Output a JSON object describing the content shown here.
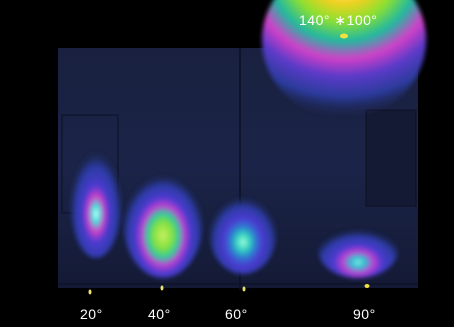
{
  "figure": {
    "labels": {
      "top": "140° ∗100°",
      "beam_20": "20°",
      "beam_40": "40°",
      "beam_60": "60°",
      "beam_90": "90°"
    }
  }
}
